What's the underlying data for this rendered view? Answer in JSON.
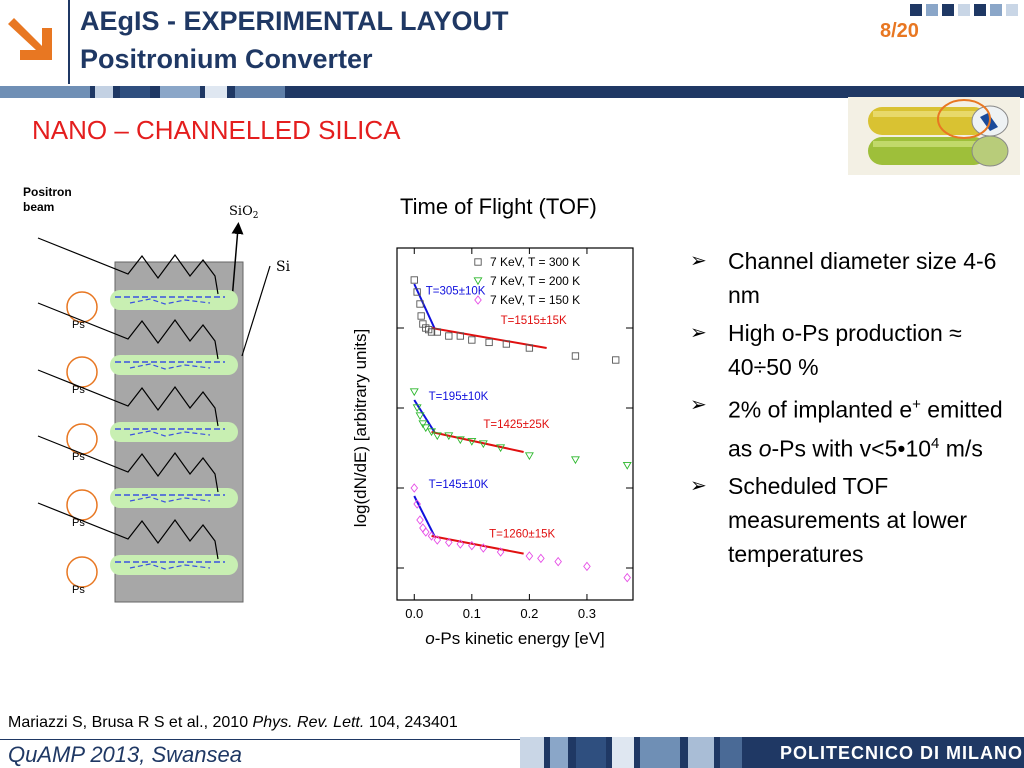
{
  "header": {
    "title_line1": "AEgIS - EXPERIMENTAL LAYOUT",
    "title_line2": "Positronium Converter",
    "page": "8/20"
  },
  "section_title": "NANO – CHANNELLED SILICA",
  "diagram": {
    "beam_label_line1": "Positron",
    "beam_label_line2": "beam",
    "sio2_main": "SiO",
    "sio2_sub": "2",
    "si_label": "Si",
    "ps_labels": [
      "Ps",
      "Ps",
      "Ps",
      "Ps",
      "Ps"
    ]
  },
  "chart_data": {
    "type": "scatter",
    "title": "Time of Flight (TOF)",
    "xlabel_italic": "o",
    "xlabel": "-Ps kinetic energy [eV]",
    "ylabel": "log(dN/dE) [arbitrary units]",
    "xlim": [
      -0.03,
      0.38
    ],
    "x_ticks": [
      "0.0",
      "0.1",
      "0.2",
      "0.3"
    ],
    "legend_position": "top-right",
    "series": [
      {
        "name": "7 KeV, T = 300 K",
        "marker": "square",
        "color": "#555555",
        "points": [
          [
            0.0,
            5.0
          ],
          [
            0.005,
            4.85
          ],
          [
            0.01,
            4.7
          ],
          [
            0.012,
            4.55
          ],
          [
            0.015,
            4.45
          ],
          [
            0.02,
            4.4
          ],
          [
            0.025,
            4.38
          ],
          [
            0.03,
            4.35
          ],
          [
            0.04,
            4.35
          ],
          [
            0.06,
            4.3
          ],
          [
            0.08,
            4.3
          ],
          [
            0.1,
            4.25
          ],
          [
            0.13,
            4.22
          ],
          [
            0.16,
            4.2
          ],
          [
            0.2,
            4.15
          ],
          [
            0.28,
            4.05
          ],
          [
            0.35,
            4.0
          ]
        ]
      },
      {
        "name": "7 KeV, T = 200 K",
        "marker": "triangle-down",
        "color": "#2db82d",
        "points": [
          [
            0.0,
            3.6
          ],
          [
            0.005,
            3.4
          ],
          [
            0.01,
            3.3
          ],
          [
            0.015,
            3.2
          ],
          [
            0.02,
            3.15
          ],
          [
            0.03,
            3.1
          ],
          [
            0.04,
            3.05
          ],
          [
            0.06,
            3.05
          ],
          [
            0.08,
            3.0
          ],
          [
            0.1,
            2.98
          ],
          [
            0.12,
            2.95
          ],
          [
            0.15,
            2.9
          ],
          [
            0.2,
            2.8
          ],
          [
            0.28,
            2.75
          ],
          [
            0.37,
            2.68
          ]
        ]
      },
      {
        "name": "7 KeV, T = 150 K",
        "marker": "diamond",
        "color": "#e64ce6",
        "points": [
          [
            0.0,
            2.4
          ],
          [
            0.005,
            2.2
          ],
          [
            0.01,
            2.0
          ],
          [
            0.015,
            1.9
          ],
          [
            0.02,
            1.85
          ],
          [
            0.03,
            1.8
          ],
          [
            0.04,
            1.75
          ],
          [
            0.06,
            1.72
          ],
          [
            0.08,
            1.7
          ],
          [
            0.1,
            1.68
          ],
          [
            0.12,
            1.65
          ],
          [
            0.15,
            1.6
          ],
          [
            0.2,
            1.55
          ],
          [
            0.22,
            1.52
          ],
          [
            0.25,
            1.48
          ],
          [
            0.3,
            1.42
          ],
          [
            0.37,
            1.28
          ]
        ]
      }
    ],
    "fits": [
      {
        "label": "T=305±10K",
        "color": "#1010dd",
        "points": [
          [
            0.0,
            4.95
          ],
          [
            0.035,
            4.4
          ]
        ],
        "label_at": [
          0.02,
          4.82
        ]
      },
      {
        "label": "T=1515±15K",
        "color": "#e01010",
        "points": [
          [
            0.03,
            4.4
          ],
          [
            0.23,
            4.15
          ]
        ],
        "label_at": [
          0.15,
          4.45
        ]
      },
      {
        "label": "T=195±10K",
        "color": "#1010dd",
        "points": [
          [
            0.0,
            3.5
          ],
          [
            0.035,
            3.1
          ]
        ],
        "label_at": [
          0.025,
          3.5
        ]
      },
      {
        "label": "T=1425±25K",
        "color": "#e01010",
        "points": [
          [
            0.03,
            3.1
          ],
          [
            0.19,
            2.85
          ]
        ],
        "label_at": [
          0.12,
          3.15
        ]
      },
      {
        "label": "T=145±10K",
        "color": "#1010dd",
        "points": [
          [
            0.0,
            2.3
          ],
          [
            0.035,
            1.8
          ]
        ],
        "label_at": [
          0.025,
          2.4
        ]
      },
      {
        "label": "T=1260±15K",
        "color": "#e01010",
        "points": [
          [
            0.03,
            1.8
          ],
          [
            0.19,
            1.58
          ]
        ],
        "label_at": [
          0.13,
          1.78
        ]
      }
    ]
  },
  "bullets": [
    {
      "parts": [
        {
          "t": "Channel diameter size 4-6 nm"
        }
      ]
    },
    {
      "parts": [
        {
          "t": "High o-Ps production ≈ 40÷50 %"
        }
      ]
    },
    {
      "parts": [
        {
          "t": "2% of implanted e"
        },
        {
          "t": "+",
          "sup": true
        },
        {
          "t": " emitted as "
        },
        {
          "t": "o",
          "i": true
        },
        {
          "t": "-Ps with v<5•10"
        },
        {
          "t": "4",
          "sup": true
        },
        {
          "t": " m/s"
        }
      ]
    },
    {
      "parts": [
        {
          "t": "Scheduled TOF measurements at lower temperatures"
        }
      ]
    }
  ],
  "footer": {
    "citation_prefix": "Mariazzi S, Brusa R S et al., 2010 ",
    "citation_journal": "Phys. Rev. Lett.",
    "citation_suffix": " 104, 243401",
    "event": "QuAMP 2013, Swansea",
    "brand": "POLITECNICO DI MILANO"
  },
  "colors": {
    "navy": "#1f3864",
    "orange": "#e87722",
    "red_title": "#e41e1e"
  }
}
